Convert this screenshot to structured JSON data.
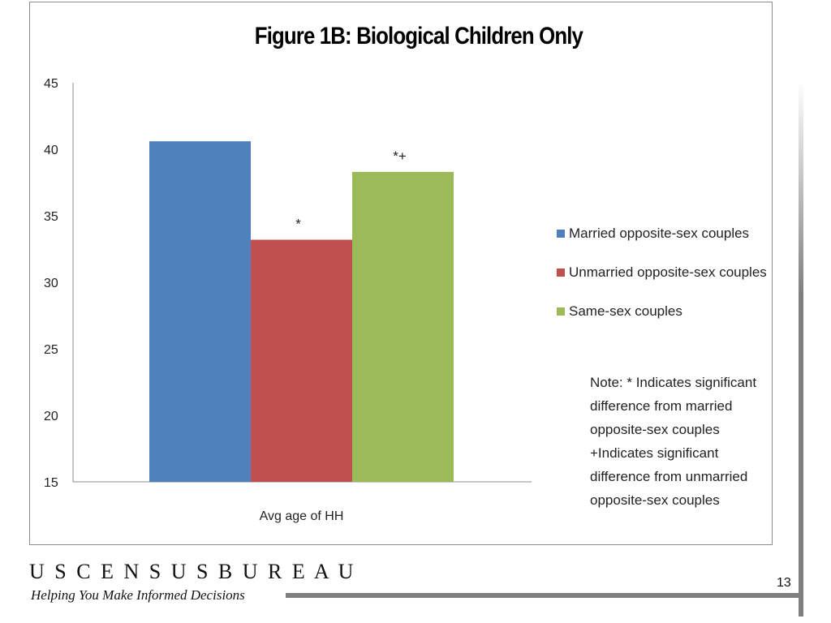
{
  "chart_data": {
    "type": "bar",
    "title": "Figure 1B: Biological Children Only",
    "categories": [
      "Avg age of HH"
    ],
    "series": [
      {
        "name": "Married opposite-sex couples",
        "values": [
          40.6
        ],
        "color": "#4f81bd",
        "label": ""
      },
      {
        "name": "Unmarried opposite-sex couples",
        "values": [
          33.2
        ],
        "color": "#c0504d",
        "label": "*"
      },
      {
        "name": "Same-sex couples",
        "values": [
          38.3
        ],
        "color": "#9bbb59",
        "label": "*+"
      }
    ],
    "ylim": [
      15,
      45
    ],
    "yticks": [
      15,
      20,
      25,
      30,
      35,
      40,
      45
    ],
    "grid": false,
    "legend": "right",
    "xlabel": "",
    "ylabel": ""
  },
  "note": {
    "lines": [
      "Note: * Indicates significant",
      "difference from married",
      "opposite-sex couples",
      "+Indicates significant",
      "difference from unmarried",
      "opposite-sex couples"
    ]
  },
  "footer": {
    "logo": "U S C E N S U S B U R E A U",
    "tagline": "Helping You Make Informed Decisions",
    "page_number": "13"
  }
}
